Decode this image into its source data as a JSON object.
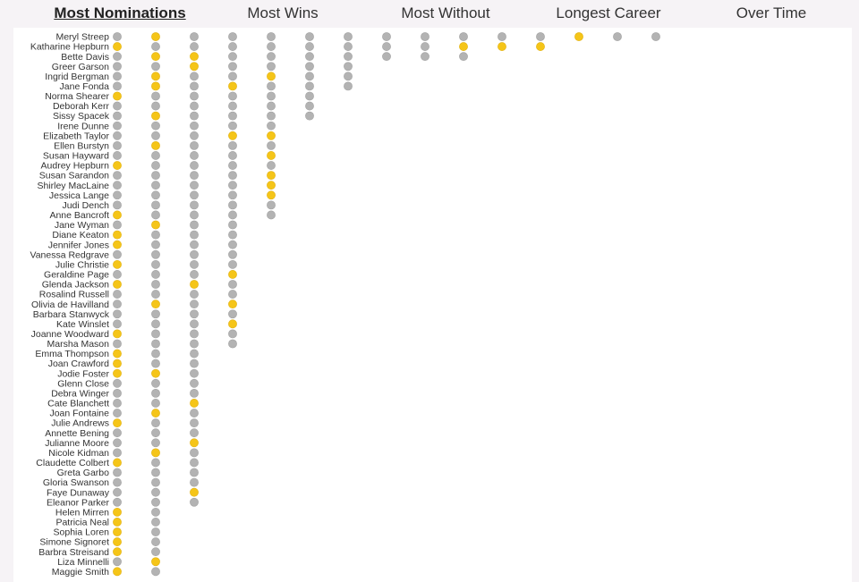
{
  "tabs": [
    {
      "label": "Most Nominations",
      "active": true
    },
    {
      "label": "Most Wins",
      "active": false
    },
    {
      "label": "Most Without",
      "active": false
    },
    {
      "label": "Longest Career",
      "active": false
    },
    {
      "label": "Over Time",
      "active": false
    }
  ],
  "colors": {
    "win": "#f5c518",
    "nomination": "#b3b3b3",
    "background": "#f6f3f6",
    "panel": "#ffffff"
  },
  "chart_data": {
    "type": "dot-matrix",
    "series": [
      {
        "name": "Nomination",
        "color": "#b3b3b3"
      },
      {
        "name": "Win",
        "color": "#f5c518"
      }
    ],
    "actresses": [
      {
        "name": "Meryl Streep",
        "nominations": 15,
        "wins_at": [
          2,
          13
        ]
      },
      {
        "name": "Katharine Hepburn",
        "nominations": 12,
        "wins_at": [
          1,
          10,
          11,
          12
        ]
      },
      {
        "name": "Bette Davis",
        "nominations": 10,
        "wins_at": [
          2,
          3
        ]
      },
      {
        "name": "Greer Garson",
        "nominations": 7,
        "wins_at": [
          3
        ]
      },
      {
        "name": "Ingrid Bergman",
        "nominations": 7,
        "wins_at": [
          2,
          5
        ]
      },
      {
        "name": "Jane Fonda",
        "nominations": 7,
        "wins_at": [
          2,
          4
        ]
      },
      {
        "name": "Norma Shearer",
        "nominations": 6,
        "wins_at": [
          1
        ]
      },
      {
        "name": "Deborah Kerr",
        "nominations": 6,
        "wins_at": []
      },
      {
        "name": "Sissy Spacek",
        "nominations": 6,
        "wins_at": [
          2
        ]
      },
      {
        "name": "Irene Dunne",
        "nominations": 5,
        "wins_at": []
      },
      {
        "name": "Elizabeth Taylor",
        "nominations": 5,
        "wins_at": [
          4,
          5
        ]
      },
      {
        "name": "Ellen Burstyn",
        "nominations": 5,
        "wins_at": [
          2
        ]
      },
      {
        "name": "Susan Hayward",
        "nominations": 5,
        "wins_at": [
          5
        ]
      },
      {
        "name": "Audrey Hepburn",
        "nominations": 5,
        "wins_at": [
          1
        ]
      },
      {
        "name": "Susan Sarandon",
        "nominations": 5,
        "wins_at": [
          5
        ]
      },
      {
        "name": "Shirley MacLaine",
        "nominations": 5,
        "wins_at": [
          5
        ]
      },
      {
        "name": "Jessica Lange",
        "nominations": 5,
        "wins_at": [
          5
        ]
      },
      {
        "name": "Judi Dench",
        "nominations": 5,
        "wins_at": []
      },
      {
        "name": "Anne Bancroft",
        "nominations": 5,
        "wins_at": [
          1
        ]
      },
      {
        "name": "Jane Wyman",
        "nominations": 4,
        "wins_at": [
          2
        ]
      },
      {
        "name": "Diane Keaton",
        "nominations": 4,
        "wins_at": [
          1
        ]
      },
      {
        "name": "Jennifer Jones",
        "nominations": 4,
        "wins_at": [
          1
        ]
      },
      {
        "name": "Vanessa Redgrave",
        "nominations": 4,
        "wins_at": []
      },
      {
        "name": "Julie Christie",
        "nominations": 4,
        "wins_at": [
          1
        ]
      },
      {
        "name": "Geraldine Page",
        "nominations": 4,
        "wins_at": [
          4
        ]
      },
      {
        "name": "Glenda Jackson",
        "nominations": 4,
        "wins_at": [
          1,
          3
        ]
      },
      {
        "name": "Rosalind Russell",
        "nominations": 4,
        "wins_at": []
      },
      {
        "name": "Olivia de Havilland",
        "nominations": 4,
        "wins_at": [
          2,
          4
        ]
      },
      {
        "name": "Barbara Stanwyck",
        "nominations": 4,
        "wins_at": []
      },
      {
        "name": "Kate Winslet",
        "nominations": 4,
        "wins_at": [
          4
        ]
      },
      {
        "name": "Joanne Woodward",
        "nominations": 4,
        "wins_at": [
          1
        ]
      },
      {
        "name": "Marsha Mason",
        "nominations": 4,
        "wins_at": []
      },
      {
        "name": "Emma Thompson",
        "nominations": 3,
        "wins_at": [
          1
        ]
      },
      {
        "name": "Joan Crawford",
        "nominations": 3,
        "wins_at": [
          1
        ]
      },
      {
        "name": "Jodie Foster",
        "nominations": 3,
        "wins_at": [
          1,
          2
        ]
      },
      {
        "name": "Glenn Close",
        "nominations": 3,
        "wins_at": []
      },
      {
        "name": "Debra Winger",
        "nominations": 3,
        "wins_at": []
      },
      {
        "name": "Cate Blanchett",
        "nominations": 3,
        "wins_at": [
          3
        ]
      },
      {
        "name": "Joan Fontaine",
        "nominations": 3,
        "wins_at": [
          2
        ]
      },
      {
        "name": "Julie Andrews",
        "nominations": 3,
        "wins_at": [
          1
        ]
      },
      {
        "name": "Annette Bening",
        "nominations": 3,
        "wins_at": []
      },
      {
        "name": "Julianne Moore",
        "nominations": 3,
        "wins_at": [
          3
        ]
      },
      {
        "name": "Nicole Kidman",
        "nominations": 3,
        "wins_at": [
          2
        ]
      },
      {
        "name": "Claudette Colbert",
        "nominations": 3,
        "wins_at": [
          1
        ]
      },
      {
        "name": "Greta Garbo",
        "nominations": 3,
        "wins_at": []
      },
      {
        "name": "Gloria Swanson",
        "nominations": 3,
        "wins_at": []
      },
      {
        "name": "Faye Dunaway",
        "nominations": 3,
        "wins_at": [
          3
        ]
      },
      {
        "name": "Eleanor Parker",
        "nominations": 3,
        "wins_at": []
      },
      {
        "name": "Helen Mirren",
        "nominations": 2,
        "wins_at": [
          1
        ]
      },
      {
        "name": "Patricia Neal",
        "nominations": 2,
        "wins_at": [
          1
        ]
      },
      {
        "name": "Sophia Loren",
        "nominations": 2,
        "wins_at": [
          1
        ]
      },
      {
        "name": "Simone Signoret",
        "nominations": 2,
        "wins_at": [
          1
        ]
      },
      {
        "name": "Barbra Streisand",
        "nominations": 2,
        "wins_at": [
          1
        ]
      },
      {
        "name": "Liza Minnelli",
        "nominations": 2,
        "wins_at": [
          2
        ]
      },
      {
        "name": "Maggie Smith",
        "nominations": 2,
        "wins_at": [
          1
        ]
      }
    ]
  }
}
